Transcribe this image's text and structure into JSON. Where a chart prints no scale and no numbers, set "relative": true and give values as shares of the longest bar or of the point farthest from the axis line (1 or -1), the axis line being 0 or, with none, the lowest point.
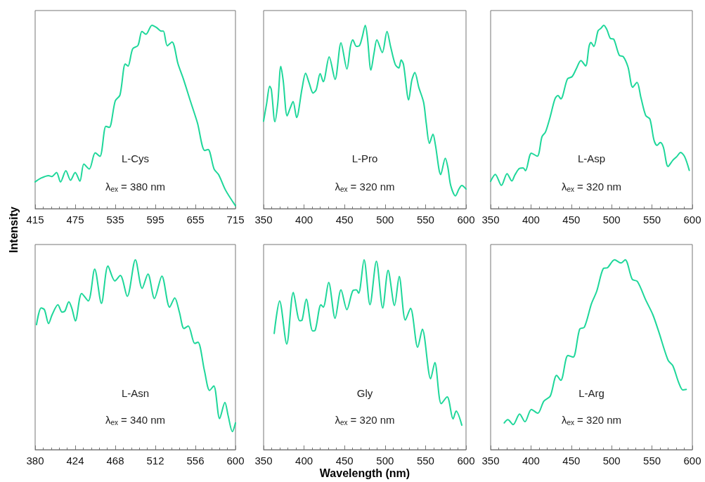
{
  "chart_data": [
    {
      "type": "line",
      "relative": true,
      "ylabel": "Intensity",
      "color": "#1ed79a",
      "xlim": [
        415,
        715
      ],
      "xticks": [
        415,
        475,
        535,
        595,
        655,
        715
      ],
      "annotations": [
        "L-Cys",
        "λ$_{ex}$ = 380 nm"
      ],
      "x": [
        415,
        423,
        435,
        440,
        447,
        453,
        461,
        468,
        475,
        482,
        488,
        496,
        505,
        512,
        521,
        526,
        535,
        542,
        550,
        554,
        561,
        569,
        575,
        581,
        590,
        597,
        604,
        607,
        613,
        620,
        629,
        637,
        648,
        658,
        669,
        674,
        683,
        690,
        700,
        715
      ],
      "values": [
        0.146,
        0.165,
        0.18,
        0.175,
        0.197,
        0.146,
        0.207,
        0.155,
        0.197,
        0.15,
        0.243,
        0.216,
        0.304,
        0.285,
        0.449,
        0.443,
        0.588,
        0.619,
        0.789,
        0.777,
        0.871,
        0.89,
        0.966,
        0.951,
        1,
        0.987,
        0.968,
        0.968,
        0.888,
        0.909,
        0.789,
        0.707,
        0.581,
        0.468,
        0.317,
        0.323,
        0.216,
        0.184,
        0.102,
        0.016
      ]
    },
    {
      "type": "line",
      "relative": true,
      "color": "#1ed79a",
      "xlim": [
        350,
        600
      ],
      "xticks": [
        350,
        400,
        450,
        500,
        550,
        600
      ],
      "annotations": [
        "L-Pro",
        "λ$_{ex}$ = 320 nm"
      ],
      "x": [
        350,
        353.8,
        357.6,
        359.6,
        364,
        367.5,
        371.3,
        374.2,
        379.1,
        382.9,
        386.4,
        390.8,
        397.5,
        401.9,
        406.2,
        411.2,
        415,
        419.9,
        423.7,
        431,
        438.3,
        445.6,
        452.9,
        457.3,
        460.2,
        464.6,
        468.3,
        471.8,
        475.6,
        478.2,
        482.6,
        486.4,
        489.9,
        496.6,
        502.4,
        506.8,
        512.6,
        517,
        519.9,
        522.8,
        529.2,
        533,
        536.8,
        541.7,
        547.6,
        551,
        554.8,
        559.2,
        562.1,
        568.8,
        574.4,
        577.6,
        581.1,
        586.9,
        591.3,
        594.8,
        600
      ],
      "values": [
        0.477,
        0.574,
        0.667,
        0.649,
        0.474,
        0.574,
        0.776,
        0.699,
        0.506,
        0.549,
        0.584,
        0.497,
        0.655,
        0.738,
        0.686,
        0.63,
        0.649,
        0.736,
        0.692,
        0.827,
        0.705,
        0.904,
        0.761,
        0.885,
        0.92,
        0.885,
        0.888,
        0.935,
        1,
        0.935,
        0.755,
        0.848,
        0.92,
        0.851,
        0.966,
        0.885,
        0.786,
        0.767,
        0.811,
        0.786,
        0.593,
        0.699,
        0.742,
        0.661,
        0.58,
        0.462,
        0.356,
        0.406,
        0.35,
        0.186,
        0.275,
        0.225,
        0.126,
        0.07,
        0.107,
        0.126,
        0.107
      ]
    },
    {
      "type": "line",
      "relative": true,
      "color": "#1ed79a",
      "xlim": [
        350,
        600
      ],
      "xticks": [
        350,
        400,
        450,
        500,
        550,
        600
      ],
      "annotations": [
        "L-Asp",
        "λ$_{ex}$ = 320 nm"
      ],
      "x": [
        350,
        355.8,
        363.4,
        370.4,
        376.3,
        380.1,
        385.9,
        390.3,
        393.2,
        400.5,
        407.8,
        413.7,
        418,
        423.9,
        429.7,
        433.5,
        437,
        445.2,
        451,
        456,
        461.9,
        467.7,
        472.1,
        474.4,
        477.9,
        483.2,
        486.7,
        490.2,
        494,
        498.4,
        502.7,
        509.5,
        514.4,
        520.3,
        526.1,
        531.4,
        536.3,
        542.2,
        547.4,
        552.4,
        556.2,
        560.3,
        564.1,
        569.9,
        575.8,
        580.7,
        585.4,
        590.4,
        596.2
      ],
      "values": [
        0.149,
        0.187,
        0.127,
        0.191,
        0.151,
        0.184,
        0.22,
        0.222,
        0.207,
        0.303,
        0.286,
        0.393,
        0.418,
        0.502,
        0.598,
        0.617,
        0.598,
        0.707,
        0.72,
        0.761,
        0.807,
        0.778,
        0.887,
        0.906,
        0.884,
        0.97,
        0.983,
        1,
        0.977,
        0.928,
        0.923,
        0.836,
        0.829,
        0.772,
        0.662,
        0.688,
        0.605,
        0.508,
        0.489,
        0.374,
        0.345,
        0.361,
        0.335,
        0.23,
        0.264,
        0.284,
        0.306,
        0.284,
        0.209
      ]
    },
    {
      "type": "line",
      "relative": true,
      "color": "#1ed79a",
      "xlim": [
        380,
        600
      ],
      "xticks": [
        380,
        424,
        468,
        512,
        556,
        600
      ],
      "annotations": [
        "L-Asn",
        "λ$_{ex}$ = 340 nm"
      ],
      "x": [
        381.5,
        386.6,
        390.2,
        394.8,
        398.7,
        405,
        409.6,
        412.7,
        417,
        420.4,
        424.2,
        431.1,
        438.3,
        445.4,
        452.8,
        460,
        467.6,
        473.5,
        481.2,
        490.1,
        497.5,
        503.9,
        511,
        519.2,
        527.7,
        533.3,
        538.4,
        543.5,
        548.1,
        555.3,
        558.8,
        566,
        571.6,
        576.2,
        582.6,
        588.4,
        592,
        596.6,
        600
      ],
      "values": [
        0.658,
        0.746,
        0.737,
        0.664,
        0.711,
        0.763,
        0.724,
        0.73,
        0.779,
        0.743,
        0.678,
        0.822,
        0.783,
        0.951,
        0.77,
        0.967,
        0.888,
        0.917,
        0.807,
        1,
        0.849,
        0.925,
        0.796,
        0.914,
        0.75,
        0.799,
        0.724,
        0.638,
        0.651,
        0.559,
        0.566,
        0.414,
        0.312,
        0.336,
        0.164,
        0.249,
        0.178,
        0.095,
        0.141
      ]
    },
    {
      "type": "line",
      "relative": true,
      "xlabel": "Wavelength (nm)",
      "color": "#1ed79a",
      "xlim": [
        350,
        600
      ],
      "xticks": [
        350,
        400,
        450,
        500,
        550,
        600
      ],
      "annotations": [
        "Gly",
        "λ$_{ex}$ = 320 nm"
      ],
      "x": [
        363.1,
        369.8,
        378.6,
        386.7,
        394.6,
        397.5,
        402.7,
        410.6,
        413.5,
        420.8,
        423.7,
        430.4,
        438.3,
        445.6,
        452.9,
        460.2,
        464.5,
        467.4,
        474.1,
        481.4,
        489.3,
        497.1,
        503.8,
        511.7,
        517.5,
        525.1,
        531.5,
        540.3,
        546.1,
        556.3,
        561.5,
        569.4,
        576.7,
        584,
        587.8,
        594.8
      ],
      "values": [
        0.612,
        0.783,
        0.556,
        0.828,
        0.679,
        0.682,
        0.792,
        0.625,
        0.627,
        0.763,
        0.75,
        0.88,
        0.692,
        0.841,
        0.737,
        0.837,
        0.841,
        0.824,
        1,
        0.763,
        0.992,
        0.746,
        0.944,
        0.759,
        0.912,
        0.682,
        0.744,
        0.539,
        0.634,
        0.373,
        0.459,
        0.242,
        0.278,
        0.162,
        0.203,
        0.129
      ]
    },
    {
      "type": "line",
      "relative": true,
      "color": "#1ed79a",
      "xlim": [
        350,
        600
      ],
      "xticks": [
        350,
        400,
        450,
        500,
        550,
        600
      ],
      "annotations": [
        "L-Arg",
        "λ$_{ex}$ = 320 nm"
      ],
      "x": [
        366.9,
        371.3,
        378,
        385.9,
        392.6,
        400.5,
        408.4,
        416,
        423.9,
        431.8,
        437,
        445.8,
        452.2,
        460.4,
        466.2,
        475,
        481.4,
        489.6,
        494.9,
        503.6,
        511.5,
        516.8,
        525.5,
        532,
        542.2,
        550.9,
        558.3,
        569.9,
        575.8,
        583.1,
        588.3,
        592.4
      ],
      "values": [
        0.141,
        0.158,
        0.132,
        0.188,
        0.147,
        0.212,
        0.192,
        0.256,
        0.282,
        0.391,
        0.365,
        0.496,
        0.487,
        0.635,
        0.645,
        0.769,
        0.833,
        0.953,
        0.958,
        1,
        0.983,
        1,
        0.897,
        0.885,
        0.788,
        0.712,
        0.622,
        0.471,
        0.442,
        0.353,
        0.314,
        0.317
      ]
    }
  ]
}
